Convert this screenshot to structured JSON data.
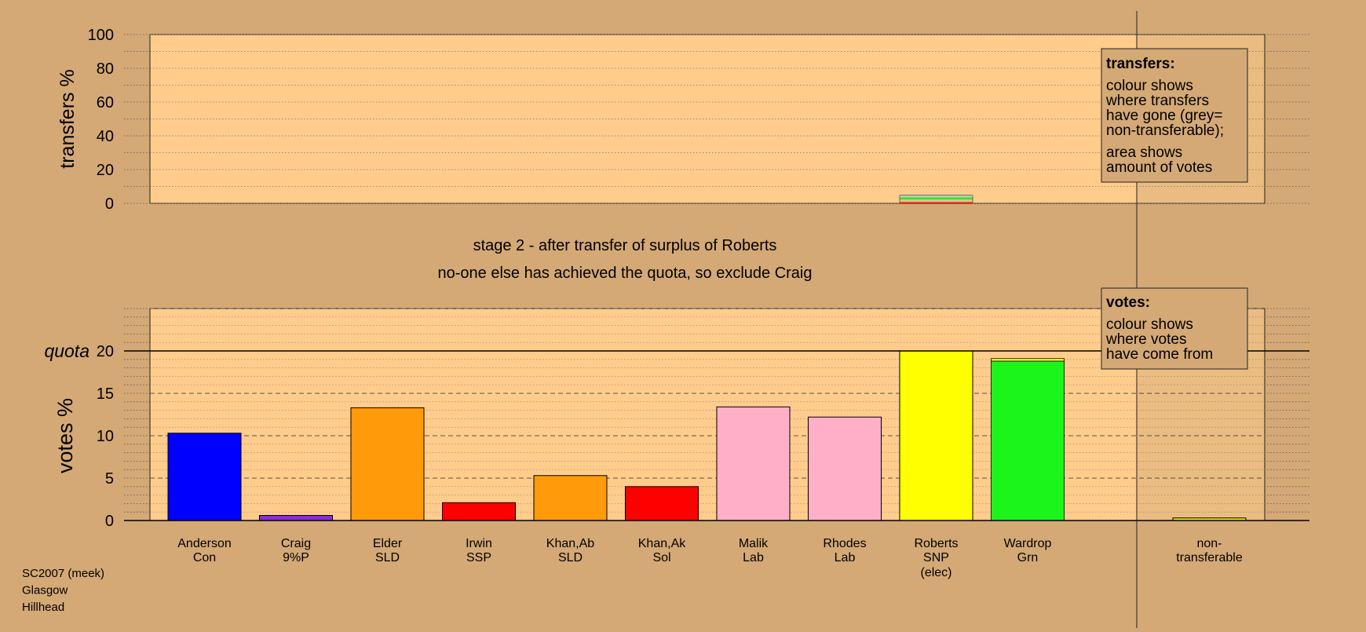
{
  "colors": {
    "background": "#d4a976",
    "panel": "#ffcc8c",
    "parties": {
      "Con": "#0000ff",
      "9%P": "#8a2be2",
      "SLD": "#ff9a0a",
      "SSP": "#ff0000",
      "Sol": "#ff0000",
      "Lab": "#ffb0c8",
      "SNP": "#ffff00",
      "Grn": "#1cf51c",
      "non-transferable": "#c8c8c8"
    }
  },
  "stage_title": "stage 2 - after transfer of surplus of Roberts",
  "stage_subtitle": "no-one else has achieved the quota, so exclude Craig",
  "footer": [
    "SC2007 (meek)",
    "Glasgow",
    "Hillhead"
  ],
  "legend_transfers": {
    "heading": "transfers:",
    "lines1": [
      "colour shows",
      "where transfers",
      "have gone (grey=",
      "non-transferable);"
    ],
    "lines2": [
      "area shows",
      "amount of votes"
    ]
  },
  "legend_votes": {
    "heading": "votes:",
    "lines": [
      "colour shows",
      "where votes",
      "have come from"
    ]
  },
  "chart_data": [
    {
      "type": "bar",
      "name": "transfers",
      "ylabel": "transfers %",
      "ylim": [
        0,
        100
      ],
      "ticks": [
        "0",
        "20",
        "40",
        "60",
        "80",
        "100"
      ],
      "bars": [
        {
          "candidate": "Roberts",
          "segments": [
            {
              "party": "SSP",
              "value": 0.6
            },
            {
              "party": "SLD",
              "value": 0.6
            },
            {
              "party": "Lab",
              "value": 1.0
            },
            {
              "party": "Grn",
              "value": 1.4
            },
            {
              "party": "non-transferable",
              "value": 1.2
            }
          ]
        }
      ]
    },
    {
      "type": "bar",
      "name": "votes",
      "ylabel": "votes %",
      "ylim": [
        0,
        25
      ],
      "ticks": [
        "0",
        "5",
        "10",
        "15",
        "20"
      ],
      "quota": 20,
      "quota_label": "quota",
      "categories": [
        {
          "name": "Anderson",
          "party": "Con",
          "value": 10.3
        },
        {
          "name": "Craig",
          "party": "9%P",
          "value": 0.6
        },
        {
          "name": "Elder",
          "party": "SLD",
          "value": 13.3
        },
        {
          "name": "Irwin",
          "party": "SSP",
          "value": 2.1
        },
        {
          "name": "Khan,Ab",
          "party": "SLD",
          "value": 5.3
        },
        {
          "name": "Khan,Ak",
          "party": "Sol",
          "value": 4.0
        },
        {
          "name": "Malik",
          "party": "Lab",
          "value": 13.4
        },
        {
          "name": "Rhodes",
          "party": "Lab",
          "value": 12.2
        },
        {
          "name": "Roberts",
          "party": "SNP",
          "value": 20.0,
          "note": "(elec)"
        },
        {
          "name": "Wardrop",
          "party": "Grn",
          "value": 19.1,
          "segments": [
            {
              "party": "Grn",
              "value": 18.8
            },
            {
              "party": "SNP",
              "value": 0.3
            }
          ]
        },
        {
          "name": "non-",
          "party": "transferable",
          "value": 0.3,
          "color_key": "SNP"
        }
      ]
    }
  ]
}
